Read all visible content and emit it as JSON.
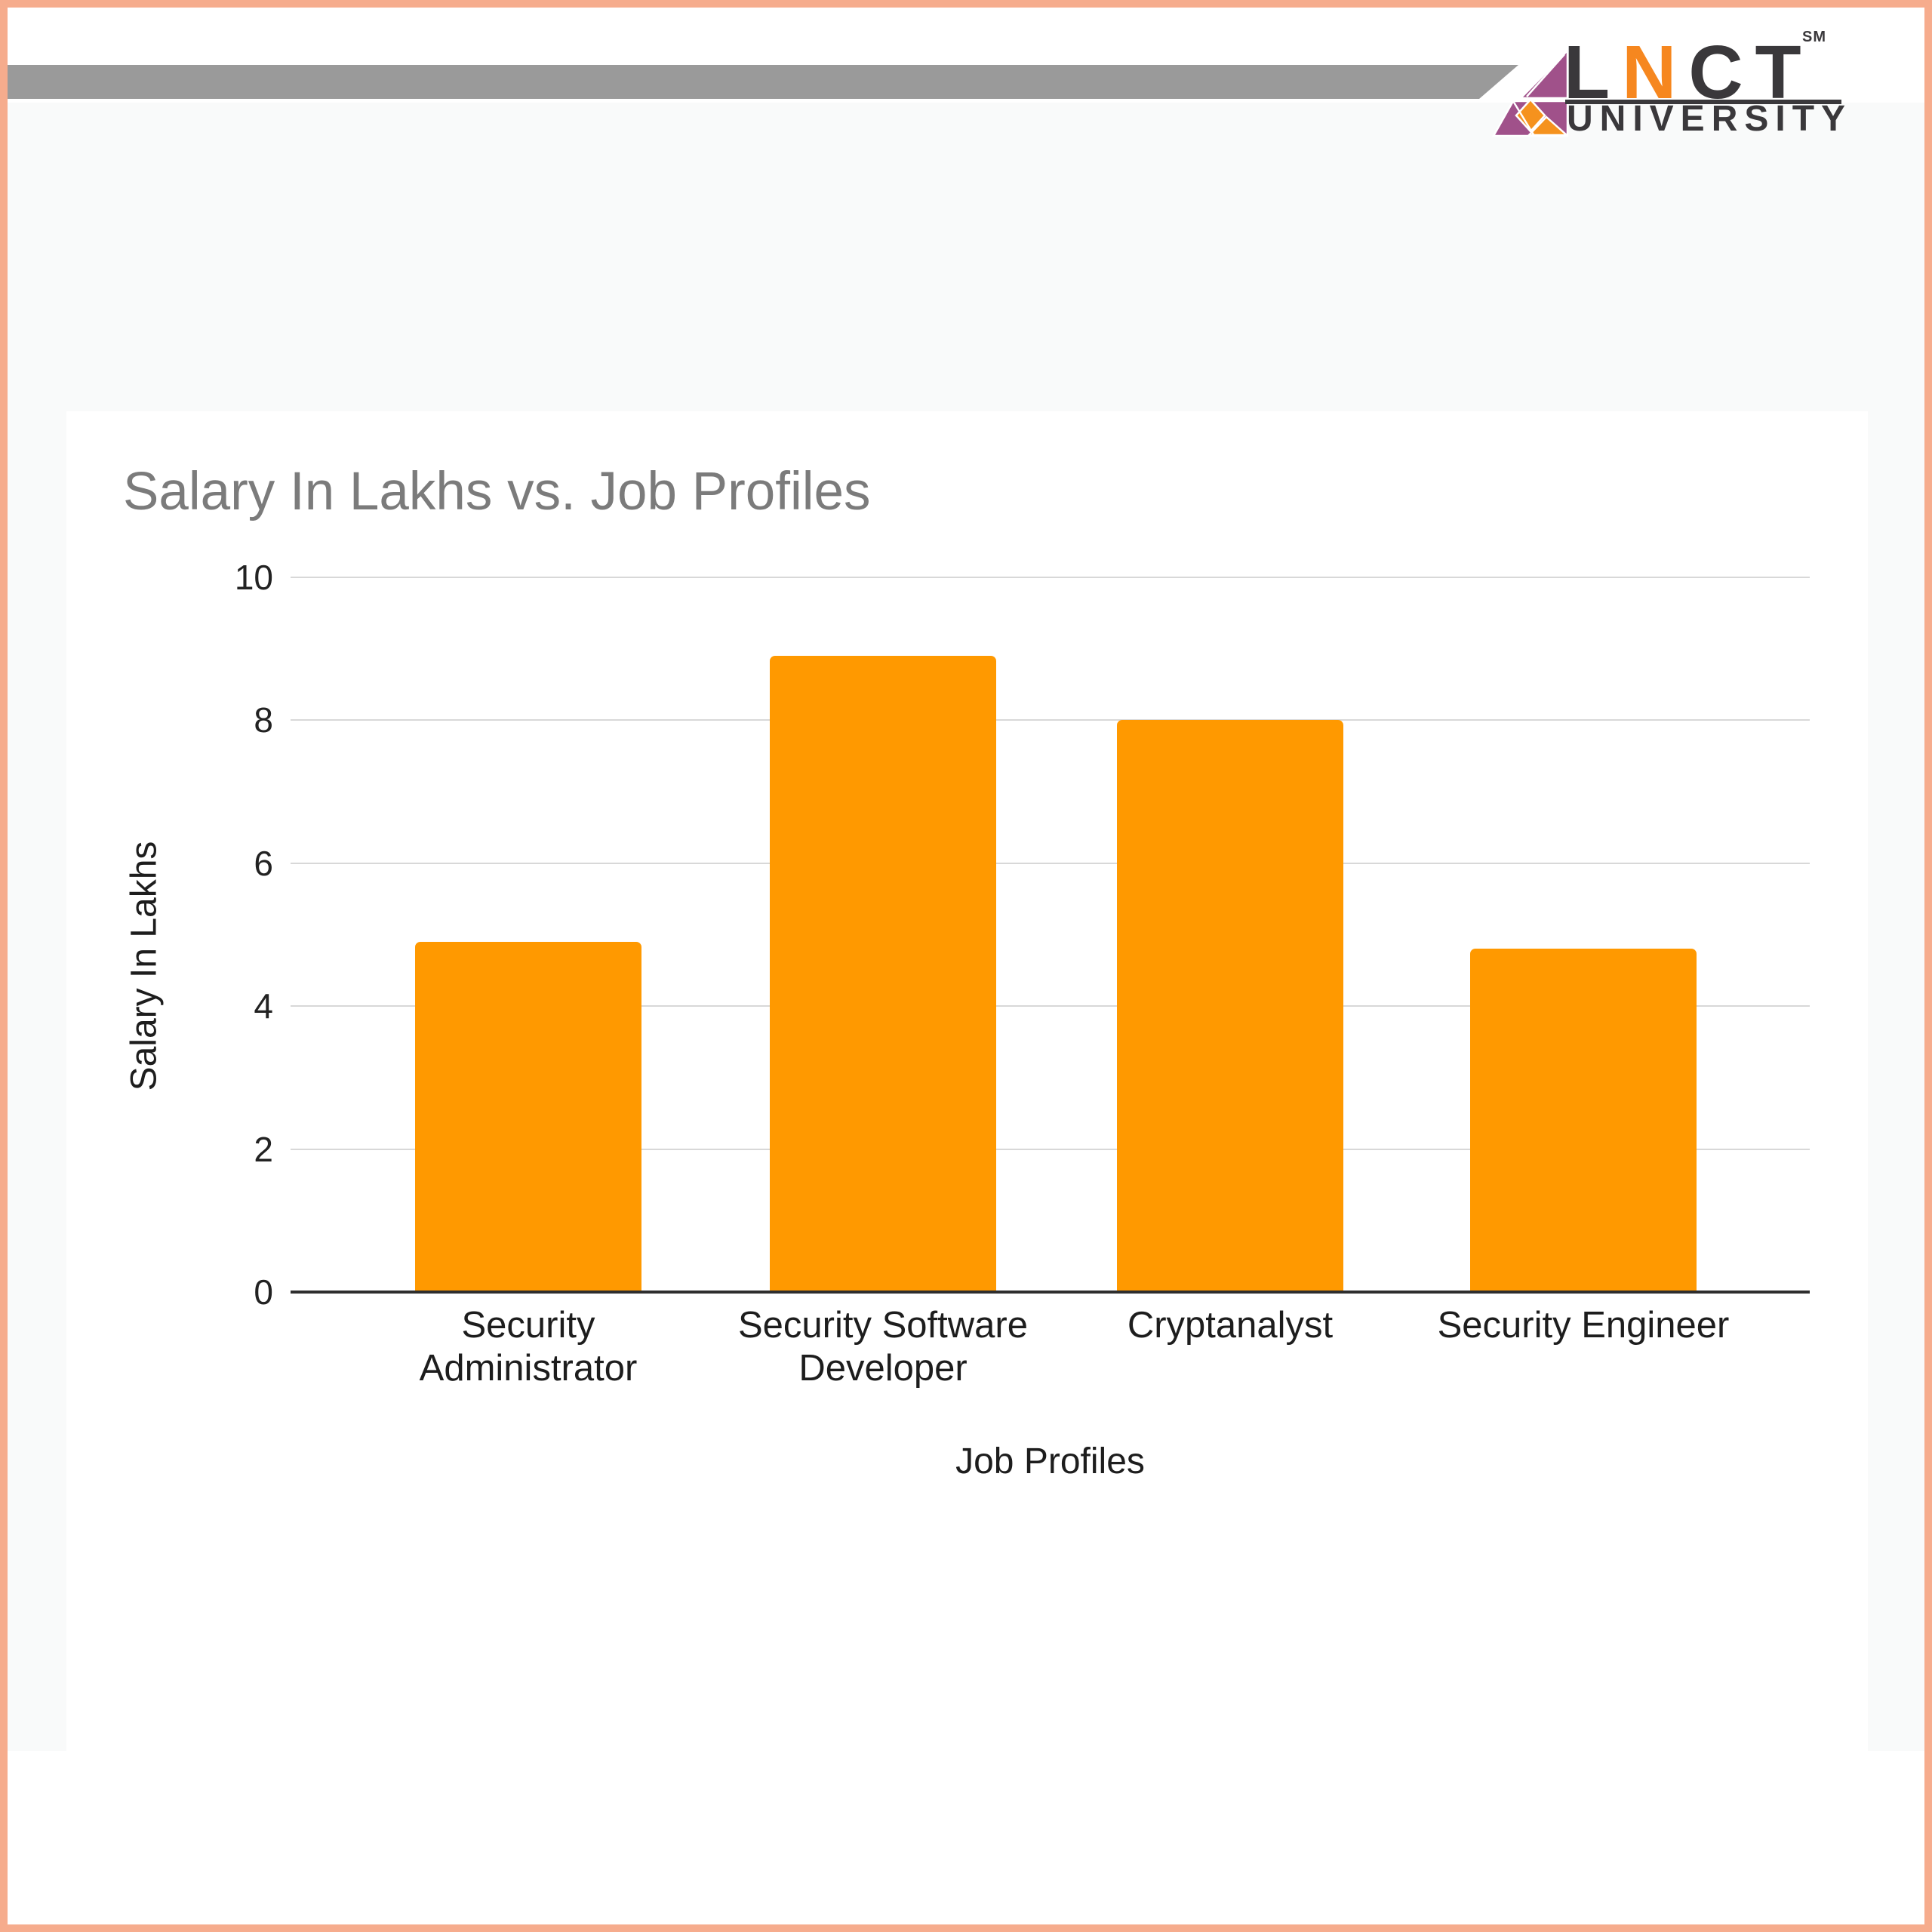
{
  "page": {
    "border_color": "#F6AC8D",
    "background": "#ffffff",
    "card_background": "#ffffff"
  },
  "header": {
    "stripe_color": "#9A9A9A",
    "logo": {
      "text_parts": {
        "first": "L",
        "accent": "N",
        "rest": "CT"
      },
      "trademark": "SM",
      "subtitle": "UNIVERSITY",
      "colors": {
        "dark": "#3A383B",
        "orange": "#F6871F",
        "purple": "#A0518A",
        "mark_orange": "#F5921E"
      }
    }
  },
  "chart_data": {
    "type": "bar",
    "title": "Salary In Lakhs vs. Job Profiles",
    "xlabel": "Job Profiles",
    "ylabel": "Salary In Lakhs",
    "categories": [
      "Security Administrator",
      "Security Software Developer",
      "Cryptanalyst",
      "Security Engineer"
    ],
    "values": [
      4.9,
      8.9,
      8,
      4.8
    ],
    "ylim": [
      0,
      10
    ],
    "yticks": [
      0,
      2,
      4,
      6,
      8,
      10
    ],
    "bar_color": "#FF9900",
    "grid": true,
    "gridline_color": "#D8D8D8",
    "axis_line_color": "#2E2E2E",
    "title_color": "#7B7B7B",
    "legend_position": "none"
  }
}
